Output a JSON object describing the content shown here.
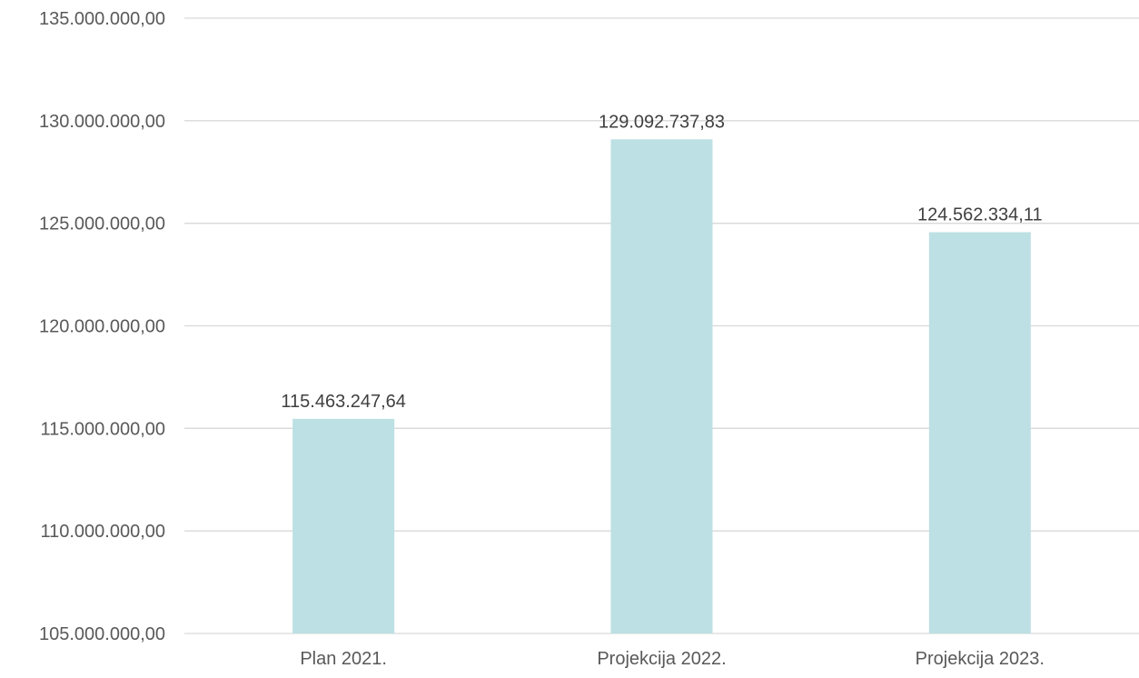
{
  "chart_data": {
    "type": "bar",
    "categories": [
      "Plan 2021.",
      "Projekcija 2022.",
      "Projekcija 2023."
    ],
    "values": [
      115463247.64,
      129092737.83,
      124562334.11
    ],
    "data_labels": [
      "115.463.247,64",
      "129.092.737,83",
      "124.562.334,11"
    ],
    "y_ticks": [
      105000000,
      110000000,
      115000000,
      120000000,
      125000000,
      130000000,
      135000000
    ],
    "y_tick_labels": [
      "105.000.000,00",
      "110.000.000,00",
      "115.000.000,00",
      "120.000.000,00",
      "125.000.000,00",
      "130.000.000,00",
      "135.000.000,00"
    ],
    "ylim": [
      105000000,
      135000000
    ],
    "title": "",
    "xlabel": "",
    "ylabel": "",
    "grid": "horizontal",
    "legend": "none",
    "colors": {
      "bar": "#bce0e3",
      "grid": "#d9d9d9",
      "tick_text": "#595959",
      "data_label_text": "#404040"
    }
  }
}
